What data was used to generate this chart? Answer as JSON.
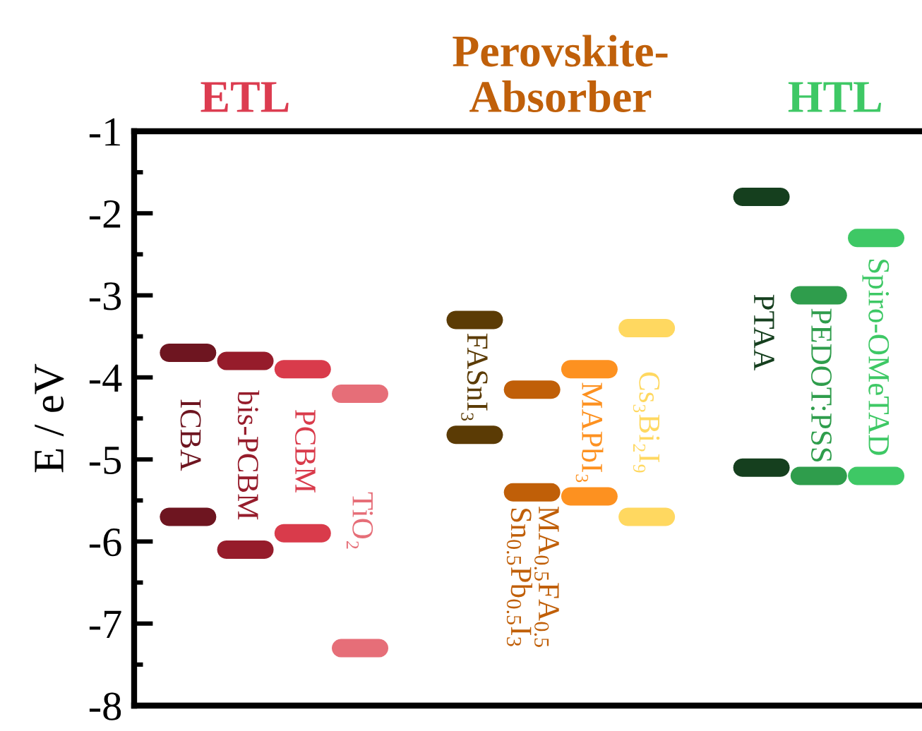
{
  "chart_data": {
    "type": "scatter",
    "ylabel": "E / eV",
    "annotations": [
      "ETL",
      "Perovskite-\nAbsorber",
      "HTL"
    ],
    "categories": [
      "ICBA",
      "bis-PCBM",
      "PCBM",
      "TiO₂",
      null,
      "FASnI₃",
      "MA$_{0.5}$FA$_{0.5}$\nSn$_{0.5}$Pb$_{0.5}$I$_{3}$",
      "MAPbI₃",
      "Cs₃Bi₂I₉",
      null,
      "PTAA",
      "PEDOT:PSS",
      "Spiro-OMeTAD"
    ],
    "series": [
      {
        "color": "#6e1520",
        "x": [
          "ICBA",
          "ICBA"
        ],
        "values": [
          -3.7,
          -5.7
        ]
      },
      {
        "color": "#961c2b",
        "x": [
          "bis-PCBM",
          "bis-PCBM"
        ],
        "values": [
          -3.8,
          -6.1
        ]
      },
      {
        "color": "#d93b4b",
        "x": [
          "PCBM",
          "PCBM"
        ],
        "values": [
          -3.9,
          -5.9
        ]
      },
      {
        "color": "#e66e78",
        "x": [
          "TiO₂",
          "TiO₂"
        ],
        "values": [
          -4.2,
          -7.3
        ]
      },
      {
        "color": "#5b3b05",
        "x": [
          "FASnI₃",
          "FASnI₃"
        ],
        "values": [
          -3.3,
          -4.7
        ]
      },
      {
        "color": "#c05f08",
        "x": [
          "MA$_{0.5}$FA$_{0.5}$\nSn$_{0.5}$Pb$_{0.5}$I$_{3}$",
          "MA$_{0.5}$FA$_{0.5}$\nSn$_{0.5}$Pb$_{0.5}$I$_{3}$"
        ],
        "values": [
          -4.15,
          -5.4
        ]
      },
      {
        "color": "#fd9120",
        "x": [
          "MAPbI₃",
          "MAPbI₃"
        ],
        "values": [
          -3.9,
          -5.45
        ]
      },
      {
        "color": "#ffd860",
        "x": [
          "Cs₃Bi₂I₉",
          "Cs₃Bi₂I₉"
        ],
        "values": [
          -3.4,
          -5.7
        ]
      },
      {
        "color": "#153f1e",
        "x": [
          "PTAA",
          "PTAA"
        ],
        "values": [
          -1.8,
          -5.1
        ]
      },
      {
        "color": "#2f9d4c",
        "x": [
          "PEDOT:PSS",
          "PEDOT:PSS"
        ],
        "values": [
          -3.0,
          -5.2
        ]
      },
      {
        "color": "#3ec865",
        "x": [
          "Spiro-OMeTAD",
          "Spiro-OMeTAD"
        ],
        "values": [
          -2.3,
          -5.2
        ]
      }
    ],
    "ylim": [
      -8,
      -1
    ],
    "yticks": [
      -8,
      -7,
      -6,
      -5,
      -4,
      -3,
      -2,
      -1
    ],
    "tick_labels": "y"
  }
}
